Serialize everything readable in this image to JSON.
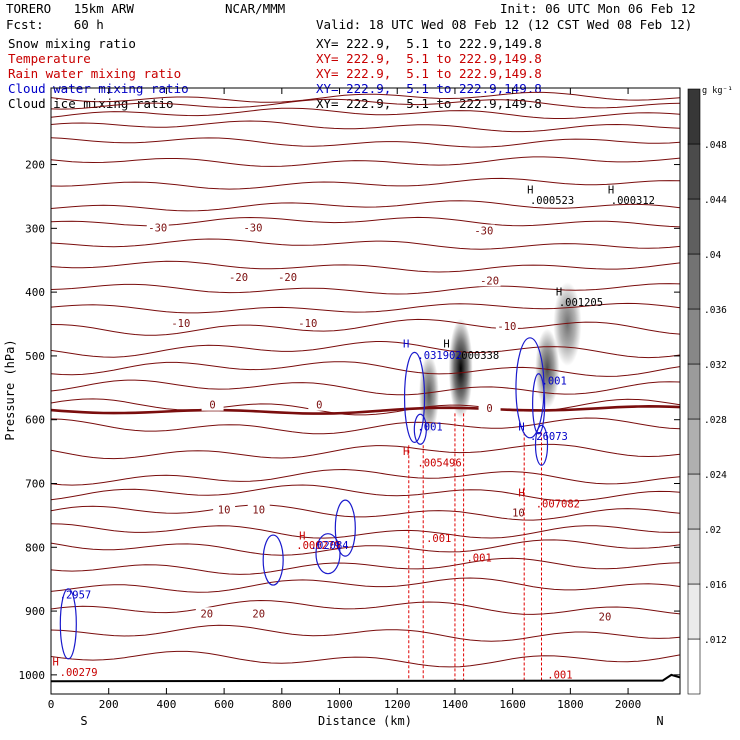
{
  "header": {
    "model": "TORERO   15km ARW",
    "org": "NCAR/MMM",
    "init": "Init: 06 UTC Mon 06 Feb 12",
    "fcst": "Fcst:    60 h",
    "valid": "Valid: 18 UTC Wed 08 Feb 12 (12 CST Wed 08 Feb 12)",
    "fields": [
      {
        "name": "Snow mixing ratio",
        "xy": "XY= 222.9,  5.1 to 222.9,149.8",
        "color": "#000000"
      },
      {
        "name": "Temperature",
        "xy": "XY= 222.9,  5.1 to 222.9,149.8",
        "color": "#c80000"
      },
      {
        "name": "Rain water mixing ratio",
        "xy": "XY= 222.9,  5.1 to 222.9,149.8",
        "color": "#c80000"
      },
      {
        "name": "Cloud water mixing ratio",
        "xy": "XY= 222.9,  5.1 to 222.9,149.8",
        "color": "#0000c8"
      },
      {
        "name": "Cloud ice mixing ratio",
        "xy": "XY= 222.9,  5.1 to 222.9,149.8",
        "color": "#000000"
      }
    ]
  },
  "chart_data": {
    "type": "cross-section contour",
    "xlabel": "Distance (km)",
    "ylabel": "Pressure (hPa)",
    "x_ticks": [
      0,
      200,
      400,
      600,
      800,
      1000,
      1200,
      1400,
      1600,
      1800,
      2000
    ],
    "y_ticks": [
      200,
      300,
      400,
      500,
      600,
      700,
      800,
      900,
      1000
    ],
    "xlim": [
      0,
      2180
    ],
    "ylim_top": 80,
    "ylim_bottom": 1030,
    "ends": {
      "left": "S",
      "right": "N"
    },
    "colorbar": {
      "unit": "g kg⁻¹",
      "ticks": [
        ".012",
        ".016",
        ".02",
        ".024",
        ".028",
        ".032",
        ".036",
        ".04",
        ".044",
        ".048"
      ],
      "range": [
        0.008,
        0.052
      ]
    },
    "temperature_contours": [
      {
        "value": -30,
        "label": "-30",
        "labels_at_km": [
          370,
          700,
          1500
        ]
      },
      {
        "value": -20,
        "label": "-20",
        "labels_at_km": [
          650,
          820,
          1520
        ]
      },
      {
        "value": -10,
        "label": "-10",
        "labels_at_km": [
          450,
          890,
          1580
        ]
      },
      {
        "value": 0,
        "label": "0",
        "labels_at_km": [
          560,
          930,
          1520
        ]
      },
      {
        "value": 10,
        "label": "10",
        "labels_at_km": [
          600,
          720,
          1620
        ]
      },
      {
        "value": 20,
        "label": "20",
        "labels_at_km": [
          540,
          720,
          1920
        ]
      }
    ],
    "temperature_levels": [
      95,
      105,
      120,
      140,
      165,
      195,
      230,
      265,
      290,
      325,
      360,
      395,
      425,
      455,
      490,
      520,
      550,
      580,
      610,
      650,
      690,
      715,
      745,
      775,
      800,
      830,
      860,
      895,
      935,
      975
    ],
    "snow_maxima": [
      {
        "km": 1310,
        "hPa": 560,
        "value": 0.031
      },
      {
        "km": 1420,
        "hPa": 520,
        "value": 0.052
      },
      {
        "km": 1720,
        "hPa": 520,
        "value": 0.032
      },
      {
        "km": 1790,
        "hPa": 450,
        "value": 0.026
      }
    ],
    "annotations": [
      {
        "text": "H",
        "km": 1650,
        "hPa": 245,
        "color": "black"
      },
      {
        "text": ".000523",
        "km": 1660,
        "hPa": 262,
        "color": "black"
      },
      {
        "text": "H",
        "km": 1930,
        "hPa": 245,
        "color": "black"
      },
      {
        "text": ".000312",
        "km": 1940,
        "hPa": 262,
        "color": "black"
      },
      {
        "text": "H",
        "km": 1750,
        "hPa": 405,
        "color": "black"
      },
      {
        "text": ".001205",
        "km": 1760,
        "hPa": 422,
        "color": "black"
      },
      {
        "text": "H",
        "km": 1360,
        "hPa": 487,
        "color": "black"
      },
      {
        "text": ".000338",
        "km": 1400,
        "hPa": 505,
        "color": "black"
      },
      {
        "text": "H",
        "km": 1220,
        "hPa": 487,
        "color": "blue"
      },
      {
        "text": ".031902",
        "km": 1270,
        "hPa": 505,
        "color": "blue"
      },
      {
        "text": ".001",
        "km": 1700,
        "hPa": 545,
        "color": "blue"
      },
      {
        "text": ".001",
        "km": 1270,
        "hPa": 617,
        "color": "blue"
      },
      {
        "text": "H",
        "km": 1620,
        "hPa": 617,
        "color": "blue"
      },
      {
        "text": ".26073",
        "km": 1660,
        "hPa": 632,
        "color": "blue"
      },
      {
        "text": "H",
        "km": 1220,
        "hPa": 655,
        "color": "red"
      },
      {
        "text": ".005496",
        "km": 1270,
        "hPa": 673,
        "color": "red"
      },
      {
        "text": "H",
        "km": 1620,
        "hPa": 720,
        "color": "red"
      },
      {
        "text": ".007082",
        "km": 1680,
        "hPa": 738,
        "color": "red"
      },
      {
        "text": ".001",
        "km": 1300,
        "hPa": 792,
        "color": "red"
      },
      {
        "text": ".001",
        "km": 1440,
        "hPa": 822,
        "color": "red"
      },
      {
        "text": "H",
        "km": 860,
        "hPa": 788,
        "color": "red"
      },
      {
        "text": ".000279",
        "km": 850,
        "hPa": 803,
        "color": "red"
      },
      {
        "text": ".02084",
        "km": 900,
        "hPa": 803,
        "color": "blue"
      },
      {
        "text": ".2957",
        "km": 30,
        "hPa": 880,
        "color": "blue"
      },
      {
        "text": "H",
        "km": 5,
        "hPa": 985,
        "color": "red"
      },
      {
        "text": ".00279",
        "km": 30,
        "hPa": 1002,
        "color": "red"
      },
      {
        "text": ".001",
        "km": 1720,
        "hPa": 1006,
        "color": "red"
      }
    ]
  }
}
